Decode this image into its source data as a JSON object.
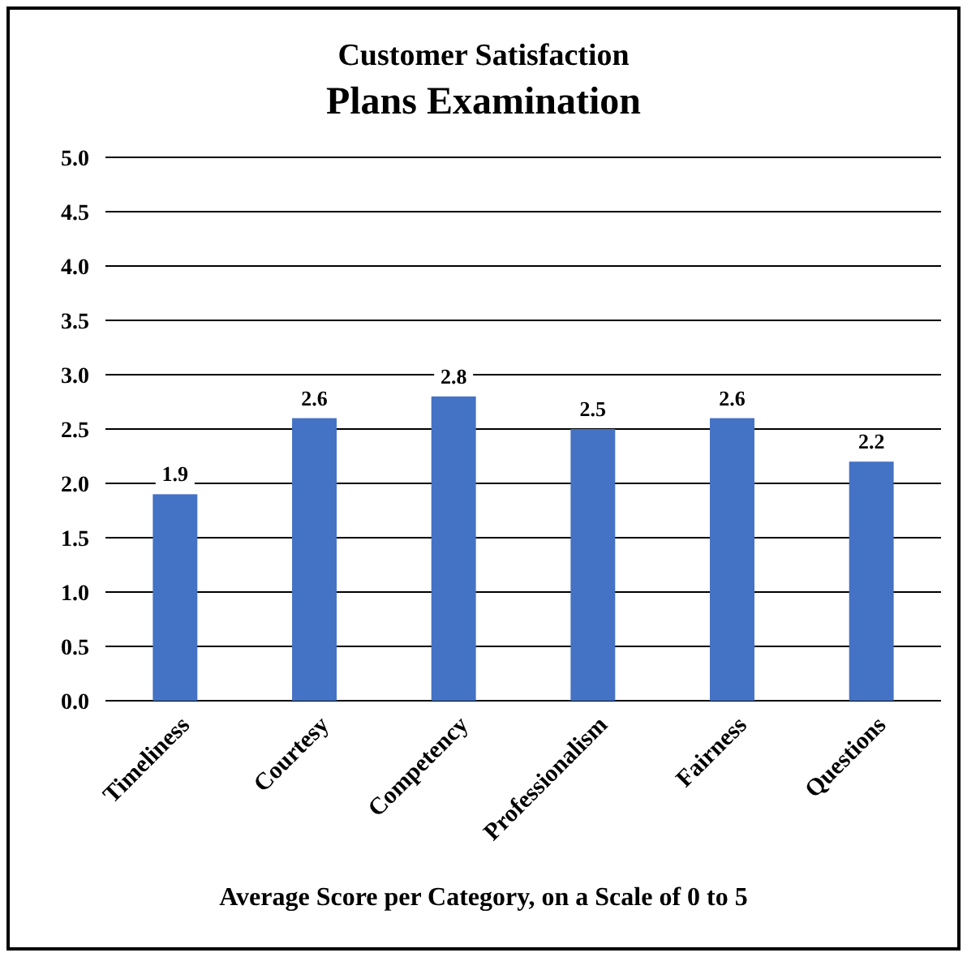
{
  "chart_data": {
    "type": "bar",
    "title": "Customer Satisfaction",
    "subtitle": "Plans Examination",
    "xlabel": "Average Score per Category, on a Scale of 0 to 5",
    "categories": [
      "Timeliness",
      "Courtesy",
      "Competency",
      "Professionalism",
      "Fairness",
      "Questions"
    ],
    "values": [
      1.9,
      2.6,
      2.8,
      2.5,
      2.6,
      2.2
    ],
    "color": "#4472c4",
    "ylim": [
      0,
      5
    ],
    "yticks": [
      {
        "value": 0,
        "label": "0.0"
      },
      {
        "value": 0.5,
        "label": "0.5"
      },
      {
        "value": 1,
        "label": "1.0"
      },
      {
        "value": 1.5,
        "label": "1.5"
      },
      {
        "value": 2,
        "label": "2.0"
      },
      {
        "value": 2.5,
        "label": "2.5"
      },
      {
        "value": 3,
        "label": "3.0"
      },
      {
        "value": 3.5,
        "label": "3.5"
      },
      {
        "value": 4,
        "label": "4.0"
      },
      {
        "value": 4.5,
        "label": "4.5"
      },
      {
        "value": 5,
        "label": "5.0"
      }
    ],
    "grid": "y",
    "data_labels": true
  }
}
